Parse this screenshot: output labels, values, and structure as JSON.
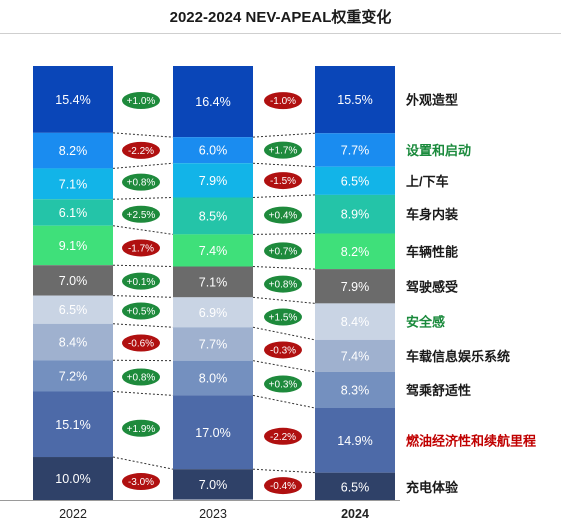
{
  "chart_data": {
    "type": "bar",
    "stacked": true,
    "normalized_to": 100,
    "title": "2022-2024 NEV-APEAL权重变化",
    "value_suffix": "%",
    "categories": [
      "2022",
      "2023",
      "2024"
    ],
    "series": [
      {
        "name": "外观造型",
        "values": [
          15.4,
          16.4,
          15.5
        ],
        "color": "#0a46b8",
        "label_color": "#1a1a1a"
      },
      {
        "name": "设置和启动",
        "values": [
          8.2,
          6.0,
          7.7
        ],
        "color": "#1a8cf0",
        "label_color": "#1a8a3c"
      },
      {
        "name": "上/下车",
        "values": [
          7.1,
          7.9,
          6.5
        ],
        "color": "#12b4e8",
        "label_color": "#1a1a1a"
      },
      {
        "name": "车身内装",
        "values": [
          6.1,
          8.5,
          8.9
        ],
        "color": "#24c4a8",
        "label_color": "#1a1a1a"
      },
      {
        "name": "车辆性能",
        "values": [
          9.1,
          7.4,
          8.2
        ],
        "color": "#3fe07a",
        "label_color": "#1a1a1a"
      },
      {
        "name": "驾驶感受",
        "values": [
          7.0,
          7.1,
          7.9
        ],
        "color": "#6b6b6b",
        "label_color": "#1a1a1a"
      },
      {
        "name": "安全感",
        "values": [
          6.5,
          6.9,
          8.4
        ],
        "color": "#c9d4e4",
        "label_color": "#1a8a3c"
      },
      {
        "name": "车载信息娱乐系统",
        "values": [
          8.4,
          7.7,
          7.4
        ],
        "color": "#9fb1cf",
        "label_color": "#1a1a1a"
      },
      {
        "name": "驾乘舒适性",
        "values": [
          7.2,
          8.0,
          8.3
        ],
        "color": "#7490bf",
        "label_color": "#1a1a1a"
      },
      {
        "name": "燃油经济性和续航里程",
        "values": [
          15.1,
          17.0,
          14.9
        ],
        "color": "#4d6aa8",
        "label_color": "#c00000"
      },
      {
        "name": "充电体验",
        "values": [
          10.0,
          7.0,
          6.5
        ],
        "color": "#2f4168",
        "label_color": "#1a1a1a"
      }
    ],
    "changes": [
      {
        "series": "外观造型",
        "2022_to_2023": "+1.0%",
        "2023_to_2024": "-1.0%"
      },
      {
        "series": "设置和启动",
        "2022_to_2023": "-2.2%",
        "2023_to_2024": "+1.7%"
      },
      {
        "series": "上/下车",
        "2022_to_2023": "+0.8%",
        "2023_to_2024": "-1.5%"
      },
      {
        "series": "车身内装",
        "2022_to_2023": "+2.5%",
        "2023_to_2024": "+0.4%"
      },
      {
        "series": "车辆性能",
        "2022_to_2023": "-1.7%",
        "2023_to_2024": "+0.7%"
      },
      {
        "series": "驾驶感受",
        "2022_to_2023": "+0.1%",
        "2023_to_2024": "+0.8%"
      },
      {
        "series": "安全感",
        "2022_to_2023": "+0.5%",
        "2023_to_2024": "+1.5%"
      },
      {
        "series": "车载信息娱乐系统",
        "2022_to_2023": "-0.6%",
        "2023_to_2024": "-0.3%"
      },
      {
        "series": "驾乘舒适性",
        "2022_to_2023": "+0.8%",
        "2023_to_2024": "+0.3%"
      },
      {
        "series": "燃油经济性和续航里程",
        "2022_to_2023": "+1.9%",
        "2023_to_2024": "-2.2%"
      },
      {
        "series": "充电体验",
        "2022_to_2023": "-3.0%",
        "2023_to_2024": "-0.4%"
      }
    ],
    "change_colors": {
      "increase": "#1e8a3c",
      "decrease": "#b01010"
    },
    "highlight_category": "2024",
    "legend_placement": "right",
    "grid": false
  }
}
